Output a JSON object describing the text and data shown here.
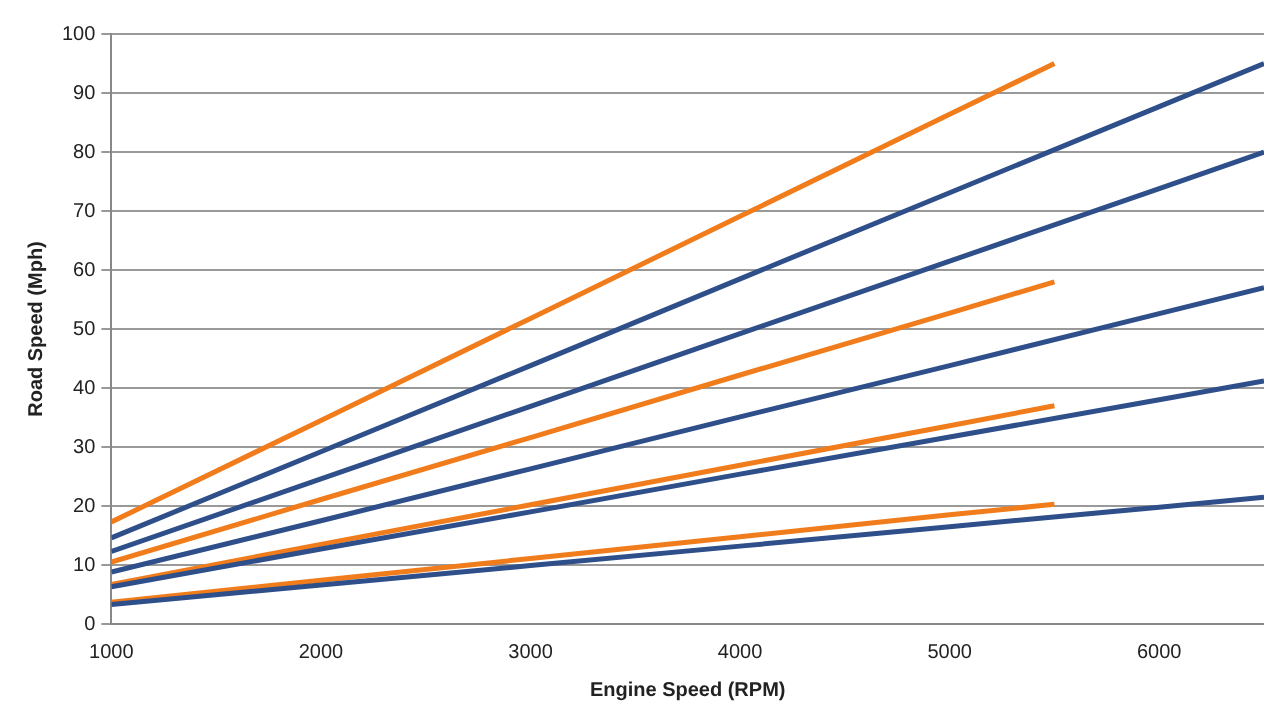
{
  "chart_data": {
    "type": "line",
    "xlabel": "Engine Speed (RPM)",
    "ylabel": "Road Speed (Mph)",
    "xlim": [
      1000,
      6500
    ],
    "xticks": [
      1000,
      2000,
      3000,
      4000,
      5000,
      6000
    ],
    "ylim": [
      0,
      100
    ],
    "yticks": [
      0,
      10,
      20,
      30,
      40,
      50,
      60,
      70,
      80,
      90,
      100
    ],
    "grid": "y",
    "legend": false,
    "marker": "none",
    "line_style": "solid",
    "series": [
      {
        "color": "#2e4f8a",
        "x": [
          1000,
          2000,
          3000,
          4000,
          5000,
          6000,
          6500
        ],
        "values": [
          14.6,
          29.2,
          43.8,
          58.5,
          73.1,
          87.7,
          95
        ]
      },
      {
        "color": "#2e4f8a",
        "x": [
          1000,
          2000,
          3000,
          4000,
          5000,
          6000,
          6500
        ],
        "values": [
          12.3,
          24.6,
          36.9,
          49.2,
          61.5,
          73.8,
          80
        ]
      },
      {
        "color": "#2e4f8a",
        "x": [
          1000,
          2000,
          3000,
          4000,
          5000,
          6000,
          6500
        ],
        "values": [
          8.8,
          17.5,
          26.3,
          35.1,
          43.8,
          52.6,
          57
        ]
      },
      {
        "color": "#2e4f8a",
        "x": [
          1000,
          2000,
          3000,
          4000,
          5000,
          6000,
          6500
        ],
        "values": [
          6.3,
          12.7,
          19,
          25.4,
          31.7,
          38,
          41.2
        ]
      },
      {
        "color": "#2e4f8a",
        "x": [
          1000,
          2000,
          3000,
          4000,
          5000,
          6000,
          6500
        ],
        "values": [
          3.3,
          6.6,
          9.9,
          13.2,
          16.5,
          19.8,
          21.5
        ]
      },
      {
        "color": "#f07c1c",
        "x": [
          1000,
          2000,
          3000,
          4000,
          5000,
          5500
        ],
        "values": [
          17.3,
          34.5,
          51.8,
          69.1,
          86.4,
          95
        ]
      },
      {
        "color": "#f07c1c",
        "x": [
          1000,
          2000,
          3000,
          4000,
          5000,
          5500
        ],
        "values": [
          10.5,
          21.1,
          31.6,
          42.2,
          52.7,
          58
        ]
      },
      {
        "color": "#f07c1c",
        "x": [
          1000,
          2000,
          3000,
          4000,
          5000,
          5500
        ],
        "values": [
          6.7,
          13.5,
          20.2,
          26.9,
          33.6,
          37
        ]
      },
      {
        "color": "#f07c1c",
        "x": [
          1000,
          2000,
          3000,
          4000,
          5000,
          5500
        ],
        "values": [
          3.7,
          7.4,
          11.1,
          14.8,
          18.5,
          20.3
        ]
      }
    ]
  }
}
